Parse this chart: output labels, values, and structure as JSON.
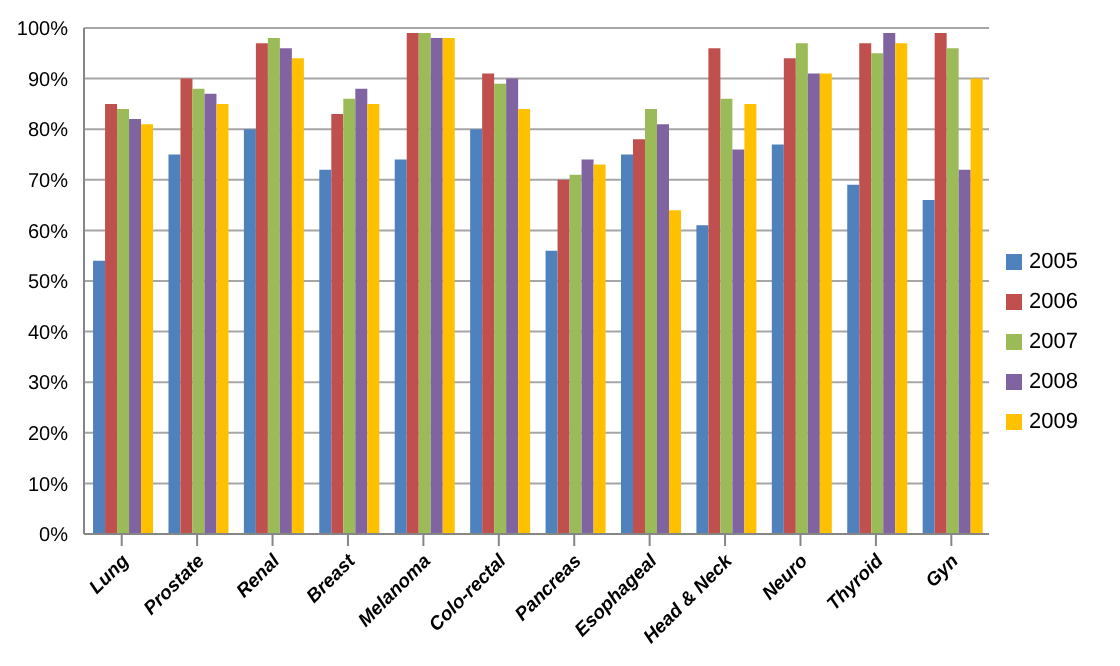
{
  "chart_data": {
    "type": "bar",
    "categories": [
      "Lung",
      "Prostate",
      "Renal",
      "Breast",
      "Melanoma",
      "Colo-rectal",
      "Pancreas",
      "Esophageal",
      "Head & Neck",
      "Neuro",
      "Thyroid",
      "Gyn"
    ],
    "series": [
      {
        "name": "2005",
        "color": "#4f81bd",
        "values": [
          54,
          75,
          80,
          72,
          74,
          80,
          56,
          75,
          61,
          77,
          69,
          66
        ]
      },
      {
        "name": "2006",
        "color": "#c0504d",
        "values": [
          85,
          90,
          97,
          83,
          99,
          91,
          70,
          78,
          96,
          94,
          97,
          99
        ]
      },
      {
        "name": "2007",
        "color": "#9bbb59",
        "values": [
          84,
          88,
          98,
          86,
          99,
          89,
          71,
          84,
          86,
          97,
          95,
          96
        ]
      },
      {
        "name": "2008",
        "color": "#8064a2",
        "values": [
          82,
          87,
          96,
          88,
          98,
          90,
          74,
          81,
          76,
          91,
          99,
          72
        ]
      },
      {
        "name": "2009",
        "color": "#ffc000",
        "values": [
          81,
          85,
          94,
          85,
          98,
          84,
          73,
          64,
          85,
          91,
          97,
          90
        ]
      }
    ],
    "ylim": [
      0,
      100
    ],
    "yticks": [
      {
        "value": 0,
        "label": "0%"
      },
      {
        "value": 10,
        "label": "10%"
      },
      {
        "value": 20,
        "label": "20%"
      },
      {
        "value": 30,
        "label": "30%"
      },
      {
        "value": 40,
        "label": "40%"
      },
      {
        "value": 50,
        "label": "50%"
      },
      {
        "value": 60,
        "label": "60%"
      },
      {
        "value": 70,
        "label": "70%"
      },
      {
        "value": 80,
        "label": "80%"
      },
      {
        "value": 90,
        "label": "90%"
      },
      {
        "value": 100,
        "label": "100%"
      }
    ],
    "grid": "y",
    "legend": "right"
  }
}
